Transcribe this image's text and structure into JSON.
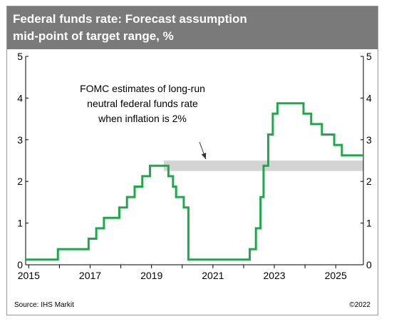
{
  "header": {
    "title_line1": "Federal funds rate: Forecast assumption",
    "title_line2": "mid-point of target range, %"
  },
  "footer": {
    "source": "Source: IHS Markit",
    "copyright": "©2022"
  },
  "colors": {
    "title_bg": "#7a7a7a",
    "series_line": "#1fa84a",
    "band": "#d3d3d3",
    "axis": "#000000"
  },
  "chart_data": {
    "type": "line",
    "title": "Federal funds rate: Forecast assumption",
    "subtitle": "mid-point of target range, %",
    "ylim": [
      0,
      5
    ],
    "yticks": [
      "0",
      "1",
      "2",
      "3",
      "4",
      "5"
    ],
    "y_axis_right": true,
    "xlim": [
      2014.9,
      2025.9
    ],
    "xticks": [
      2015,
      2017,
      2019,
      2021,
      2023,
      2025
    ],
    "xtick_labels": [
      "2015",
      "2017",
      "2019",
      "2021",
      "2023",
      "2025"
    ],
    "grid": false,
    "series": [
      {
        "style": "step",
        "points": [
          [
            2014.9,
            0.125
          ],
          [
            2015.95,
            0.375
          ],
          [
            2016.95,
            0.625
          ],
          [
            2017.2,
            0.875
          ],
          [
            2017.45,
            1.125
          ],
          [
            2017.95,
            1.375
          ],
          [
            2018.2,
            1.625
          ],
          [
            2018.45,
            1.875
          ],
          [
            2018.7,
            2.125
          ],
          [
            2018.95,
            2.375
          ],
          [
            2019.55,
            2.125
          ],
          [
            2019.7,
            1.875
          ],
          [
            2019.8,
            1.625
          ],
          [
            2020.05,
            1.375
          ],
          [
            2020.2,
            0.125
          ],
          [
            2022.2,
            0.375
          ],
          [
            2022.4,
            0.875
          ],
          [
            2022.55,
            1.625
          ],
          [
            2022.65,
            2.375
          ],
          [
            2022.8,
            3.125
          ],
          [
            2022.95,
            3.625
          ],
          [
            2023.1,
            3.875
          ],
          [
            2023.95,
            3.625
          ],
          [
            2024.2,
            3.375
          ],
          [
            2024.55,
            3.125
          ],
          [
            2024.95,
            2.875
          ],
          [
            2025.2,
            2.625
          ],
          [
            2025.9,
            2.625
          ]
        ]
      }
    ],
    "band": {
      "x_from": 2019.4,
      "x_to": 2025.9,
      "y_from": 2.25,
      "y_to": 2.5
    },
    "annotation": {
      "lines": [
        "FOMC estimates of long-run",
        "neutral federal funds rate",
        "when inflation is 2%"
      ],
      "arrow_to": [
        2021,
        2.5
      ]
    }
  }
}
